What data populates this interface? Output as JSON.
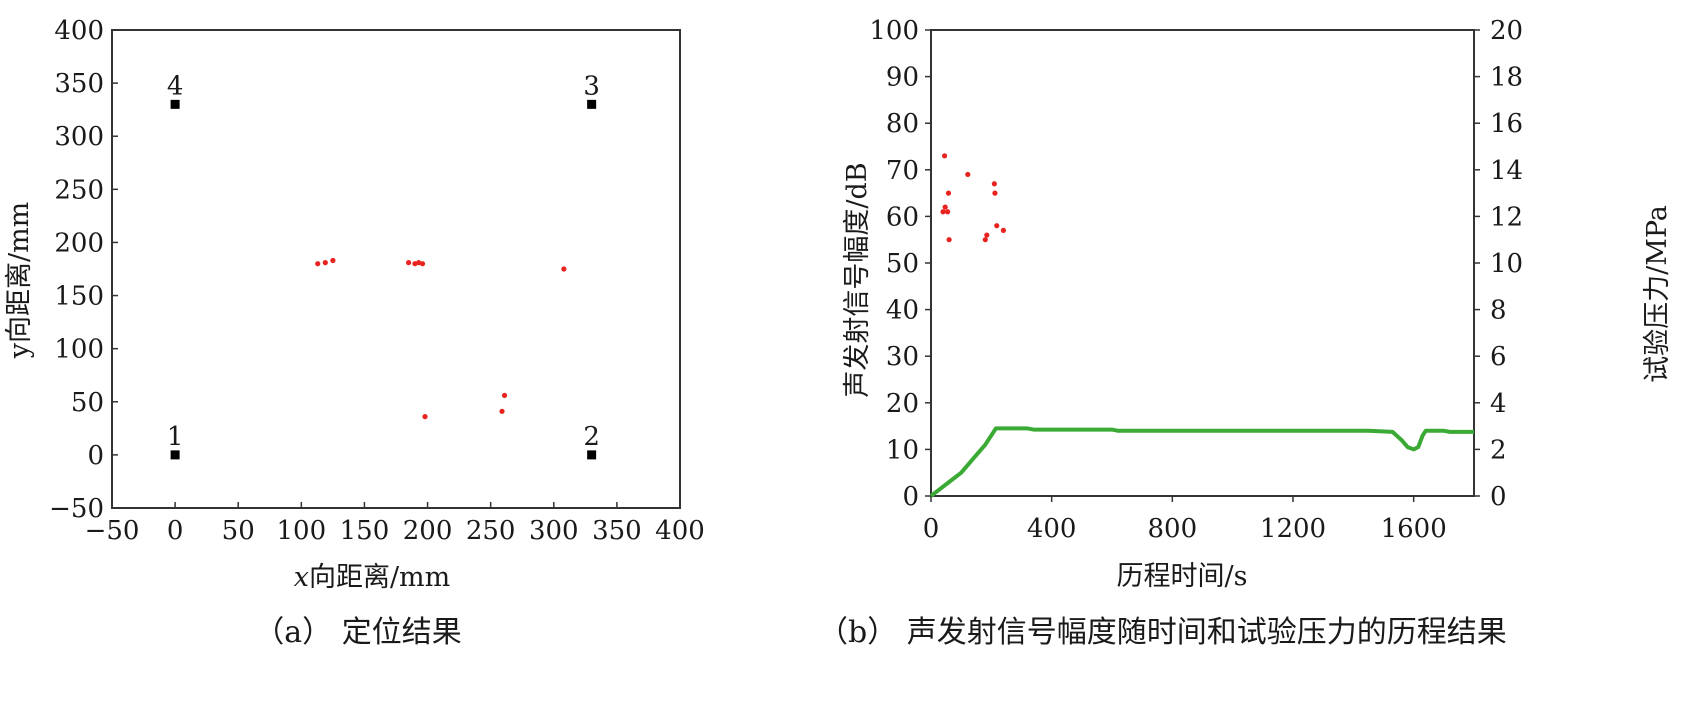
{
  "chart_data": [
    {
      "type": "scatter",
      "caption": "（a） 定位结果",
      "xlabel_prefix": "x",
      "xlabel_suffix": "向距离/mm",
      "ylabel": "y向距离/mm",
      "xlim": [
        -50,
        400
      ],
      "ylim": [
        -50,
        400
      ],
      "xticks": [
        -50,
        0,
        50,
        100,
        150,
        200,
        250,
        300,
        350,
        400
      ],
      "yticks": [
        -50,
        0,
        50,
        100,
        150,
        200,
        250,
        300,
        350,
        400
      ],
      "xtick_labels": [
        "−50",
        "0",
        "50",
        "100",
        "150",
        "200",
        "250",
        "300",
        "350",
        "400"
      ],
      "ytick_labels": [
        "−50",
        "0",
        "50",
        "100",
        "150",
        "200",
        "250",
        "300",
        "350",
        "400"
      ],
      "grid": false,
      "sensors": [
        {
          "label": "1",
          "x": 0,
          "y": 0
        },
        {
          "label": "2",
          "x": 330,
          "y": 0
        },
        {
          "label": "3",
          "x": 330,
          "y": 330
        },
        {
          "label": "4",
          "x": 0,
          "y": 330
        }
      ],
      "sensor_color": "#000000",
      "event_color": "#e8231f",
      "events": [
        {
          "x": 113,
          "y": 180
        },
        {
          "x": 119,
          "y": 181
        },
        {
          "x": 125,
          "y": 183
        },
        {
          "x": 185,
          "y": 181
        },
        {
          "x": 190,
          "y": 180
        },
        {
          "x": 193,
          "y": 181
        },
        {
          "x": 196,
          "y": 180
        },
        {
          "x": 308,
          "y": 175
        },
        {
          "x": 261,
          "y": 56
        },
        {
          "x": 259,
          "y": 41
        },
        {
          "x": 198,
          "y": 36
        }
      ]
    },
    {
      "type": "scatter+line",
      "caption": "（b） 声发射信号幅度随时间和试验压力的历程结果",
      "xlabel": "历程时间/s",
      "ylabel_left": "声发射信号幅度/dB",
      "ylabel_right": "试验压力/MPa",
      "xlim": [
        0,
        1800
      ],
      "ylim_left": [
        0,
        100
      ],
      "ylim_right": [
        0,
        20
      ],
      "xticks": [
        0,
        400,
        800,
        1200,
        1600
      ],
      "yticks_left": [
        0,
        10,
        20,
        30,
        40,
        50,
        60,
        70,
        80,
        90,
        100
      ],
      "yticks_right": [
        0,
        2,
        4,
        6,
        8,
        10,
        12,
        14,
        16,
        18,
        20
      ],
      "grid": false,
      "amplitude_color": "#e8231f",
      "pressure_color": "#3aaa35",
      "amplitude_points": [
        {
          "t": 45,
          "db": 73
        },
        {
          "t": 40,
          "db": 61
        },
        {
          "t": 47,
          "db": 62
        },
        {
          "t": 55,
          "db": 61
        },
        {
          "t": 58,
          "db": 65
        },
        {
          "t": 60,
          "db": 55
        },
        {
          "t": 122,
          "db": 69
        },
        {
          "t": 180,
          "db": 55
        },
        {
          "t": 185,
          "db": 56
        },
        {
          "t": 210,
          "db": 67
        },
        {
          "t": 212,
          "db": 65
        },
        {
          "t": 218,
          "db": 58
        },
        {
          "t": 240,
          "db": 57
        }
      ],
      "pressure_curve": [
        {
          "t": 0,
          "mpa": 0
        },
        {
          "t": 20,
          "mpa": 0.2
        },
        {
          "t": 60,
          "mpa": 0.6
        },
        {
          "t": 100,
          "mpa": 1.0
        },
        {
          "t": 140,
          "mpa": 1.6
        },
        {
          "t": 180,
          "mpa": 2.2
        },
        {
          "t": 200,
          "mpa": 2.6
        },
        {
          "t": 215,
          "mpa": 2.9
        },
        {
          "t": 320,
          "mpa": 2.9
        },
        {
          "t": 340,
          "mpa": 2.85
        },
        {
          "t": 600,
          "mpa": 2.85
        },
        {
          "t": 620,
          "mpa": 2.8
        },
        {
          "t": 1450,
          "mpa": 2.8
        },
        {
          "t": 1530,
          "mpa": 2.75
        },
        {
          "t": 1560,
          "mpa": 2.4
        },
        {
          "t": 1580,
          "mpa": 2.1
        },
        {
          "t": 1600,
          "mpa": 2.0
        },
        {
          "t": 1615,
          "mpa": 2.1
        },
        {
          "t": 1630,
          "mpa": 2.6
        },
        {
          "t": 1640,
          "mpa": 2.8
        },
        {
          "t": 1700,
          "mpa": 2.8
        },
        {
          "t": 1720,
          "mpa": 2.75
        },
        {
          "t": 1800,
          "mpa": 2.75
        }
      ]
    }
  ]
}
